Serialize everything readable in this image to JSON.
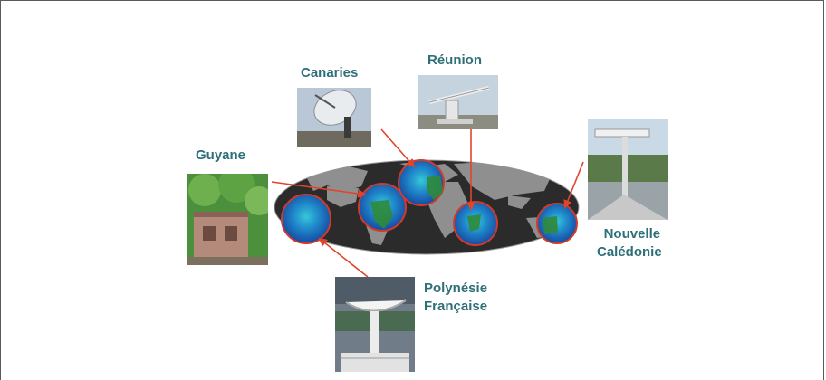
{
  "labels": {
    "canaries": "Canaries",
    "reunion": "Réunion",
    "guyane": "Guyane",
    "caledonie_line1": "Nouvelle",
    "caledonie_line2": "Calédonie",
    "polynesie_line1": "Polynésie",
    "polynesie_line2": "Française"
  },
  "colors": {
    "label_text": "#2e6f78",
    "arrow": "#e0452c",
    "ocean_map": "#2b2b2b",
    "satellite_ocean": "#1e63b5",
    "frame_border": "#5a5a5a"
  },
  "icons": {
    "canaries_photo": "satellite-dish-photo",
    "reunion_photo": "antenna-photo",
    "guyane_photo": "receiving-station-building-photo",
    "caledonie_photo": "antenna-mast-photo",
    "polynesie_photo": "rooftop-antenna-photo",
    "world_map": "world-map-ellipse"
  }
}
